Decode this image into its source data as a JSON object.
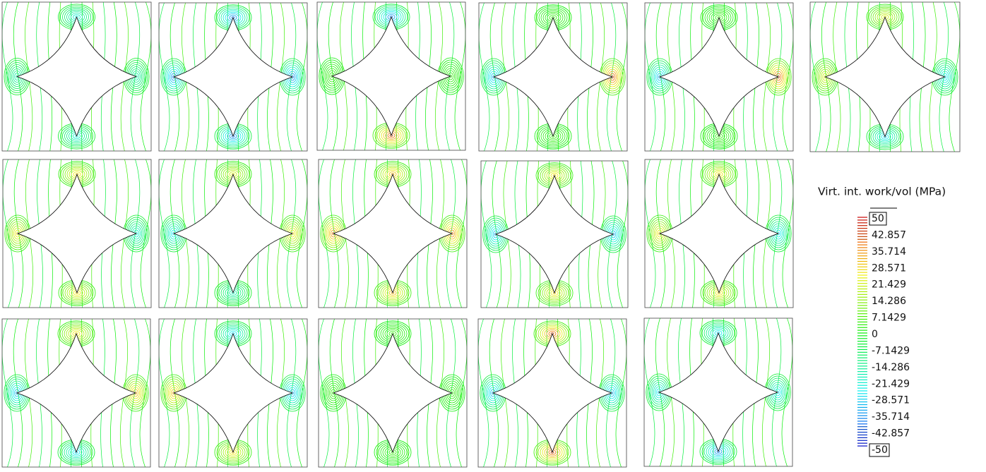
{
  "legend": {
    "title": "Virt. int. work/vol (MPa)",
    "labels": [
      "50",
      "42.857",
      "35.714",
      "28.571",
      "21.429",
      "14.286",
      "7.1429",
      "0",
      "-7.1429",
      "-14.286",
      "-21.429",
      "-28.571",
      "-35.714",
      "-42.857",
      "-50"
    ]
  }
}
